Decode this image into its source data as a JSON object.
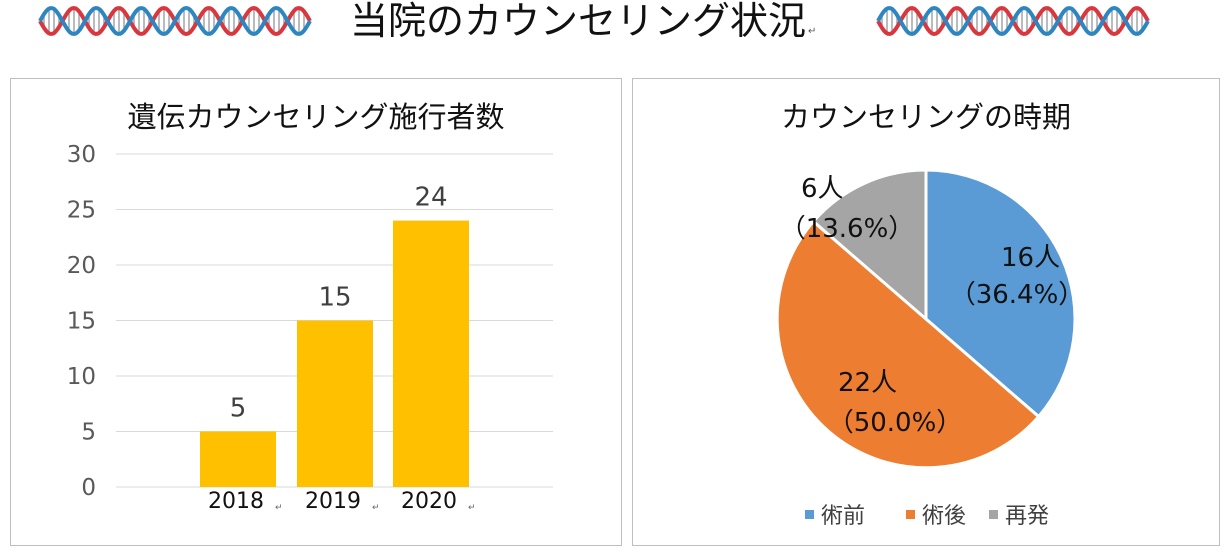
{
  "page": {
    "title": "当院のカウンセリング状況",
    "return_mark": "↵"
  },
  "icons": {
    "dna_left": "dna-helix-icon",
    "dna_right": "dna-helix-icon"
  },
  "colors": {
    "bar": "#FFC000",
    "pie_before": "#5B9BD5",
    "pie_after": "#ED7D31",
    "pie_recurrence": "#A5A5A5",
    "dna_red": "#D9363E",
    "dna_blue": "#2E86C1"
  },
  "chart_data": [
    {
      "type": "bar",
      "title": "遺伝カウンセリング施行者数",
      "categories": [
        "2018",
        "2019",
        "2020"
      ],
      "values": [
        5,
        15,
        24
      ],
      "ylim": [
        0,
        30
      ],
      "yticks": [
        0,
        5,
        10,
        15,
        20,
        25,
        30
      ],
      "grid": true,
      "data_labels": true
    },
    {
      "type": "pie",
      "title": "カウンセリングの時期",
      "slices": [
        {
          "name": "術前",
          "value": 16,
          "label": "16人",
          "percent_label": "（36.4%）"
        },
        {
          "name": "術後",
          "value": 22,
          "label": "22人",
          "percent_label": "（50.0%）"
        },
        {
          "name": "再発",
          "value": 6,
          "label": "6人",
          "percent_label": "（13.6%）"
        }
      ],
      "legend": "bottom"
    }
  ]
}
